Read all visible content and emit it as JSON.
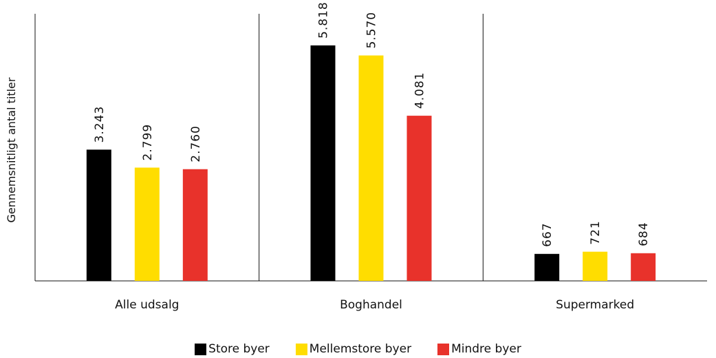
{
  "chart_data": {
    "type": "bar",
    "ylabel": "Gennemsnitligt antal titler",
    "categories": [
      "Alle udsalg",
      "Boghandel",
      "Supermarked"
    ],
    "ylim": [
      0,
      6600
    ],
    "grid": false,
    "legend_position": "bottom",
    "series": [
      {
        "name": "Store byer",
        "color": "#000000",
        "values": [
          3243,
          5818,
          667
        ],
        "labels": [
          "3.243",
          "5.818",
          "667"
        ]
      },
      {
        "name": "Mellemstore byer",
        "color": "#ffdd00",
        "values": [
          2799,
          5570,
          721
        ],
        "labels": [
          "2.799",
          "5.570",
          "721"
        ]
      },
      {
        "name": "Mindre byer",
        "color": "#e8322b",
        "values": [
          2760,
          4081,
          684
        ],
        "labels": [
          "2.760",
          "4.081",
          "684"
        ]
      }
    ]
  }
}
